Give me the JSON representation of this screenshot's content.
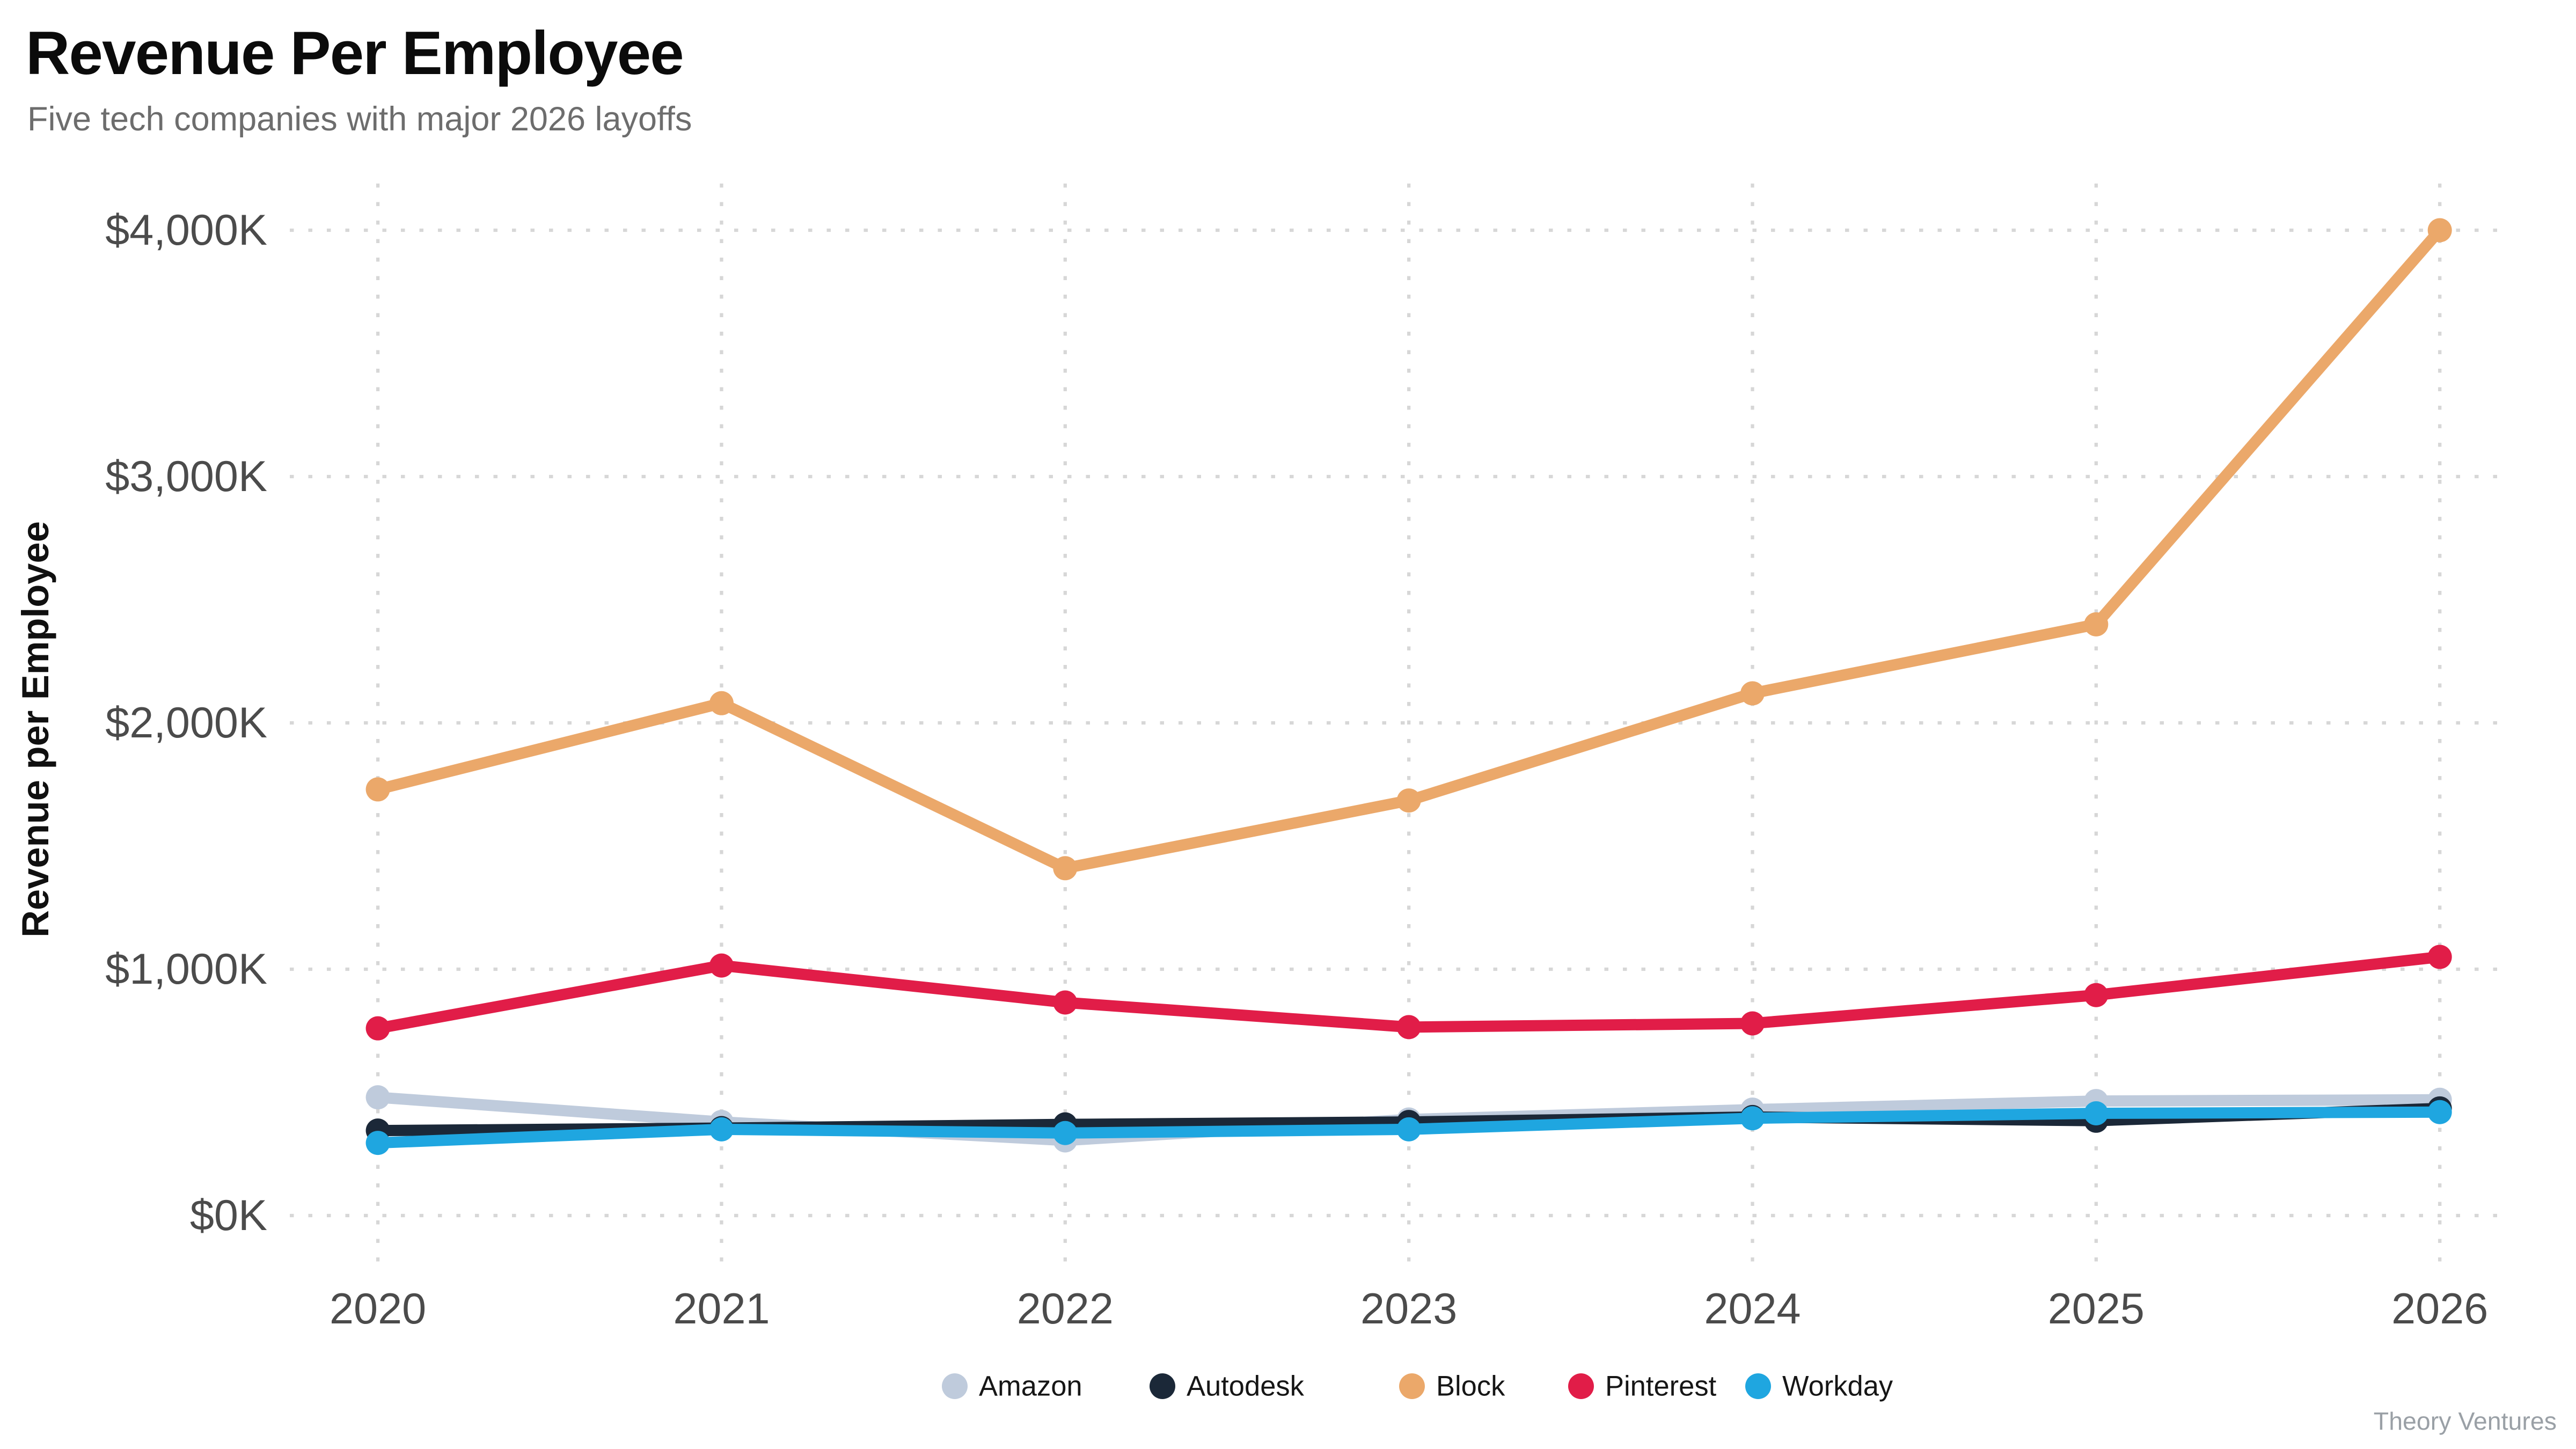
{
  "title": "Revenue Per Employee",
  "subtitle": "Five tech companies with major 2026 layoffs",
  "watermark": "Theory Ventures",
  "chart_data": {
    "type": "line",
    "title": "Revenue Per Employee",
    "subtitle": "Five tech companies with major 2026 layoffs",
    "ylabel": "Revenue per Employee",
    "xlabel": "",
    "x": [
      2020,
      2021,
      2022,
      2023,
      2024,
      2025,
      2026
    ],
    "x_tick_labels": [
      "2020",
      "2021",
      "2022",
      "2023",
      "2024",
      "2025",
      "2026"
    ],
    "y_ticks": [
      0,
      1000,
      2000,
      3000,
      4000
    ],
    "y_tick_labels": [
      "$0K",
      "$1,000K",
      "$2,000K",
      "$3,000K",
      "$4,000K"
    ],
    "ylim": [
      0,
      4000
    ],
    "grid": true,
    "grid_style": "dotted",
    "legend_position": "bottom-center",
    "series": [
      {
        "name": "Amazon",
        "color": "#bfcbdc",
        "values": [
          480,
          380,
          305,
          390,
          430,
          465,
          470
        ]
      },
      {
        "name": "Autodesk",
        "color": "#1b2838",
        "values": [
          345,
          355,
          370,
          380,
          400,
          385,
          435
        ]
      },
      {
        "name": "Block",
        "color": "#eba86a",
        "values": [
          1730,
          2080,
          1410,
          1685,
          2120,
          2400,
          4000
        ]
      },
      {
        "name": "Pinterest",
        "color": "#e11d48",
        "values": [
          760,
          1015,
          865,
          765,
          780,
          895,
          1050
        ]
      },
      {
        "name": "Workday",
        "color": "#1fa6e0",
        "values": [
          295,
          350,
          335,
          350,
          395,
          415,
          420
        ]
      }
    ],
    "colors": {
      "background": "#ffffff",
      "gridline": "#d7d7d7",
      "tick_label": "#4b4b4b",
      "title": "#0b0b0b",
      "subtitle": "#6d6d6d",
      "legend_text": "#161616",
      "watermark": "#9aa0a6"
    }
  }
}
